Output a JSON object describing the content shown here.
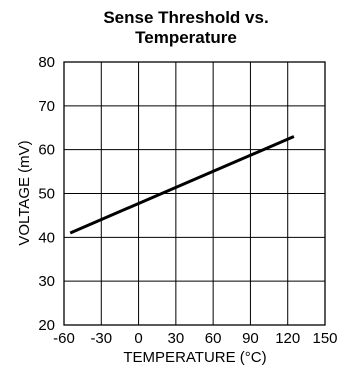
{
  "chart_data": {
    "type": "line",
    "title_lines": [
      "Sense Threshold vs.",
      "Temperature"
    ],
    "xlabel": "TEMPERATURE (°C)",
    "ylabel": "VOLTAGE (mV)",
    "xlim": [
      -60,
      150
    ],
    "ylim": [
      20,
      80
    ],
    "x_ticks": [
      -60,
      -30,
      0,
      30,
      60,
      90,
      120,
      150
    ],
    "y_ticks": [
      20,
      30,
      40,
      50,
      60,
      70,
      80
    ],
    "x_tick_labels": [
      "-60",
      "-30",
      "0",
      "30",
      "60",
      "90",
      "120",
      "150"
    ],
    "y_tick_labels": [
      "20",
      "30",
      "40",
      "50",
      "60",
      "70",
      "80"
    ],
    "grid": true,
    "series": [
      {
        "x": [
          -55,
          125
        ],
        "y": [
          41,
          63
        ]
      }
    ]
  }
}
